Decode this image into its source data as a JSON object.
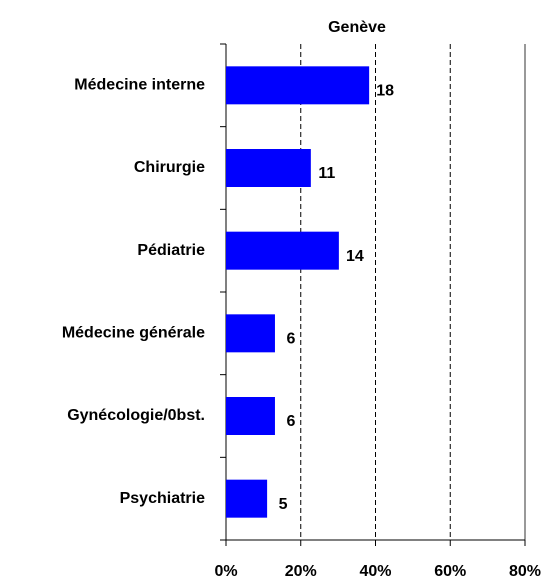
{
  "chart_data": {
    "type": "bar",
    "orientation": "horizontal",
    "title": "Genève",
    "categories": [
      "Médecine interne",
      "Chirurgie",
      "Pédiatrie",
      "Médecine générale",
      "Gynécologie/0bst.",
      "Psychiatrie"
    ],
    "values": [
      38.3,
      22.7,
      30.2,
      13.1,
      13.1,
      11
    ],
    "counts": [
      18,
      11,
      14,
      6,
      6,
      5
    ],
    "color": "#0000ff",
    "xlim": [
      0,
      80
    ],
    "xticks": [
      {
        "value": 0,
        "label": "0%"
      },
      {
        "value": 20,
        "label": "20%"
      },
      {
        "value": 40,
        "label": "40%"
      },
      {
        "value": 60,
        "label": "60%"
      },
      {
        "value": 80,
        "label": "80%"
      }
    ],
    "grid": true
  }
}
